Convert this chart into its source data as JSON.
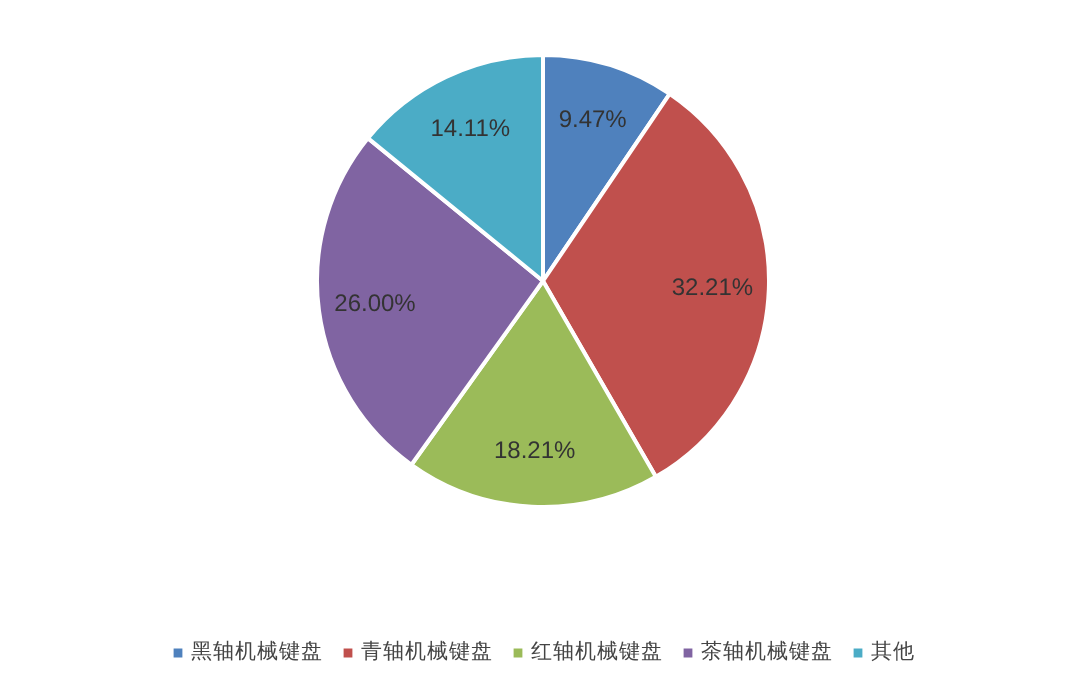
{
  "chart_data": {
    "type": "pie",
    "categories": [
      "黑轴机械键盘",
      "青轴机械键盘",
      "红轴机械键盘",
      "茶轴机械键盘",
      "其他"
    ],
    "values": [
      9.47,
      32.21,
      18.21,
      26.0,
      14.11
    ],
    "colors": [
      "#4f81bd",
      "#c0504d",
      "#9bbb59",
      "#8064a2",
      "#4bacc6"
    ],
    "value_labels": [
      "9.47%",
      "32.21%",
      "18.21%",
      "26.00%",
      "14.11%"
    ],
    "legend": "bottom"
  }
}
